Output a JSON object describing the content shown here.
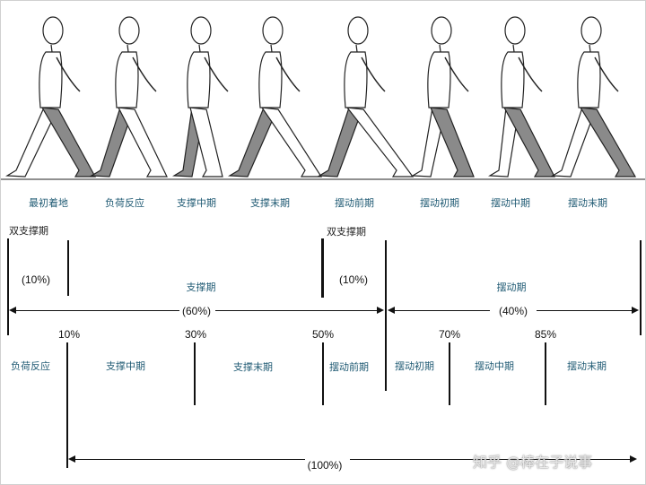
{
  "phase_labels": [
    "最初着地",
    "负荷反应",
    "支撑中期",
    "支撑末期",
    "摆动前期",
    "摆动初期",
    "摆动中期",
    "摆动末期"
  ],
  "double_support": [
    "双支撑期",
    "双支撑期"
  ],
  "row1": {
    "pct_10": "(10%)",
    "stance": "支撑期",
    "pct_10b": "(10%)",
    "swing": "摆动期",
    "pct_60": "(60%)",
    "pct_40": "(40%)"
  },
  "row2": {
    "marks": [
      "10%",
      "30%",
      "50%",
      "70%",
      "85%"
    ],
    "labels": [
      "负荷反应",
      "支撑中期",
      "支撑末期",
      "摆动前期",
      "摆动初期",
      "摆动中期",
      "摆动末期"
    ],
    "pct_100": "(100%)"
  },
  "watermark": "知乎 @棒在子说事",
  "colors": {
    "label": "#1f5a73",
    "leg_shade": "#8a8a8a",
    "line": "#111111"
  }
}
